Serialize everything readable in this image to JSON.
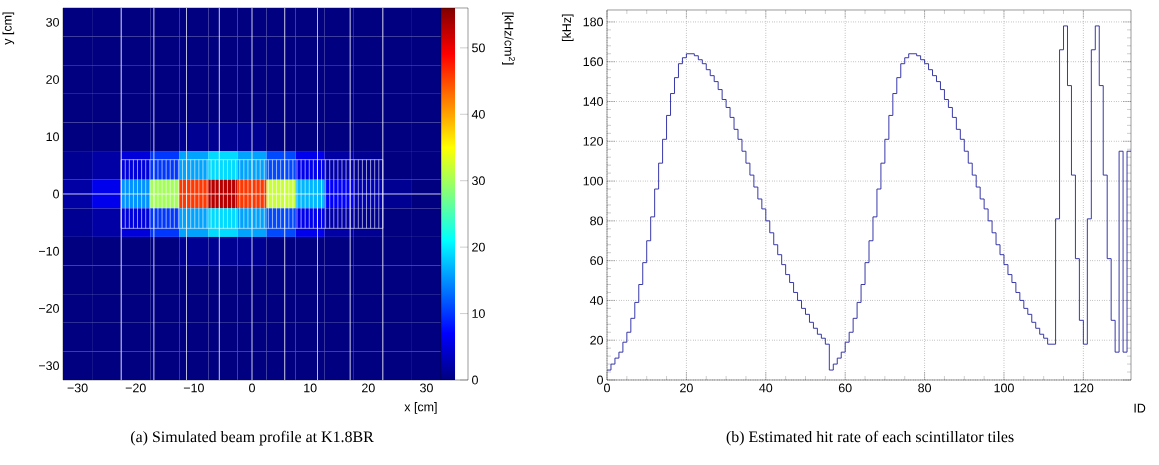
{
  "chart_data": [
    {
      "type": "heatmap",
      "title": "(a)  Simulated beam profile at K1.8BR",
      "xlabel": "x [cm]",
      "ylabel": "y [cm]",
      "clabel": "[kHz/cm$^{2}$]",
      "categories": [
        "−30",
        null,
        "−20",
        null,
        "−10",
        null,
        "0",
        null,
        "10",
        null,
        "20",
        null,
        "30"
      ],
      "y_categories": [
        "30",
        null,
        "20",
        null,
        "10",
        null,
        "0",
        null,
        "−10",
        null,
        "−20",
        null,
        "−30"
      ],
      "cells": [
        [
          0,
          0,
          0,
          0,
          0,
          0,
          0,
          0,
          0,
          0,
          0,
          0,
          0
        ],
        [
          0,
          0,
          0,
          0,
          0,
          0,
          0,
          0,
          0,
          0,
          0,
          0,
          0
        ],
        [
          0,
          0,
          0,
          0,
          0,
          0,
          0,
          0,
          0,
          0,
          0,
          0,
          0
        ],
        [
          0,
          0,
          0,
          0,
          0,
          0,
          0,
          0,
          0,
          0,
          0,
          0,
          0
        ],
        [
          0,
          0,
          0,
          0,
          1,
          1,
          1,
          0,
          0,
          0,
          0,
          0,
          0
        ],
        [
          1,
          2,
          5,
          10,
          16,
          19,
          16,
          11,
          6,
          2,
          1,
          0,
          0
        ],
        [
          2,
          6,
          15,
          30,
          46,
          53,
          46,
          32,
          17,
          7,
          3,
          1,
          0
        ],
        [
          1,
          2,
          5,
          10,
          16,
          19,
          16,
          11,
          6,
          2,
          1,
          0,
          0
        ],
        [
          0,
          0,
          0,
          0,
          1,
          1,
          1,
          0,
          0,
          0,
          0,
          0,
          0
        ],
        [
          0,
          0,
          0,
          0,
          0,
          0,
          0,
          0,
          0,
          0,
          0,
          0,
          0
        ],
        [
          0,
          0,
          0,
          0,
          0,
          0,
          0,
          0,
          0,
          0,
          0,
          0,
          0
        ],
        [
          0,
          0,
          0,
          0,
          0,
          0,
          0,
          0,
          0,
          0,
          0,
          0,
          0
        ],
        [
          0,
          0,
          0,
          0,
          0,
          0,
          0,
          0,
          0,
          0,
          0,
          0,
          0
        ]
      ],
      "clim": [
        0,
        56
      ],
      "cticks": [
        0,
        10,
        20,
        30,
        40,
        50
      ]
    },
    {
      "type": "histogram",
      "title": "(b)  Estimated hit rate of each scintillator tiles",
      "xlabel": "ID",
      "ylabel": "[kHz]",
      "bins": [
        0,
        1,
        2,
        3,
        4,
        5,
        6,
        7,
        8,
        9,
        10,
        11,
        12,
        13,
        14,
        15,
        16,
        17,
        18,
        19,
        20,
        21,
        22,
        23,
        24,
        25,
        26,
        27,
        28,
        29,
        30,
        31,
        32,
        33,
        34,
        35,
        36,
        37,
        38,
        39,
        40,
        41,
        42,
        43,
        44,
        45,
        46,
        47,
        48,
        49,
        50,
        51,
        52,
        53,
        54,
        55,
        56,
        57,
        58,
        59,
        60,
        61,
        62,
        63,
        64,
        65,
        66,
        67,
        68,
        69,
        70,
        71,
        72,
        73,
        74,
        75,
        76,
        77,
        78,
        79,
        80,
        81,
        82,
        83,
        84,
        85,
        86,
        87,
        88,
        89,
        90,
        91,
        92,
        93,
        94,
        95,
        96,
        97,
        98,
        99,
        100,
        101,
        102,
        103,
        104,
        105,
        106,
        107,
        108,
        109,
        110,
        111,
        112,
        113,
        114,
        115,
        116,
        117,
        118,
        119,
        120,
        121,
        122,
        123,
        124,
        125,
        126,
        127,
        128,
        129,
        130,
        131,
        132
      ],
      "values": [
        5,
        8,
        11,
        14,
        19,
        24,
        31,
        39,
        48,
        59,
        70,
        82,
        96,
        109,
        121,
        133,
        144,
        152,
        159,
        162,
        164,
        164,
        163,
        161,
        159,
        156,
        153,
        150,
        146,
        141,
        137,
        132,
        126,
        121,
        115,
        109,
        103,
        97,
        91,
        86,
        80,
        74,
        68,
        63,
        58,
        53,
        49,
        44,
        40,
        36,
        33,
        29,
        26,
        23,
        21,
        18,
        5,
        8,
        11,
        14,
        19,
        24,
        31,
        39,
        48,
        59,
        70,
        82,
        96,
        109,
        121,
        133,
        144,
        152,
        159,
        162,
        164,
        164,
        163,
        161,
        159,
        156,
        153,
        150,
        146,
        141,
        137,
        132,
        126,
        121,
        115,
        109,
        103,
        97,
        91,
        86,
        80,
        74,
        68,
        63,
        58,
        53,
        49,
        44,
        40,
        36,
        33,
        29,
        26,
        23,
        21,
        18,
        18,
        81,
        166,
        178,
        148,
        103,
        61,
        30,
        18,
        81,
        166,
        178,
        148,
        103,
        61,
        30,
        14,
        115,
        14,
        115
      ],
      "color": "#2222a0",
      "xlim": [
        0,
        132
      ],
      "ylim": [
        0,
        186
      ],
      "xticks": [
        0,
        20,
        40,
        60,
        80,
        100,
        120
      ],
      "yticks": [
        0,
        20,
        40,
        60,
        80,
        100,
        120,
        140,
        160,
        180
      ],
      "grid": true
    }
  ]
}
